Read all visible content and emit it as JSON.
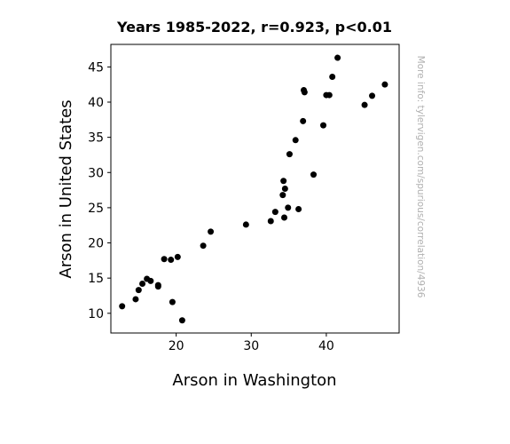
{
  "chart_data": {
    "type": "scatter",
    "title": "Years 1985-2022, r=0.923, p<0.01",
    "xlabel": "Arson in Washington",
    "ylabel": "Arson in United States",
    "side_note": "More info: tylervigen.com/spurious/correlation/4936",
    "xlim": [
      11.3,
      49.7
    ],
    "ylim": [
      7.2,
      48.2
    ],
    "xticks": [
      20,
      30,
      40
    ],
    "yticks": [
      10,
      15,
      20,
      25,
      30,
      35,
      40,
      45
    ],
    "grid": false,
    "marker_color": "#000000",
    "points": [
      {
        "x": 12.8,
        "y": 11.0
      },
      {
        "x": 14.6,
        "y": 12.0
      },
      {
        "x": 15.0,
        "y": 13.3
      },
      {
        "x": 15.5,
        "y": 14.2
      },
      {
        "x": 16.1,
        "y": 14.9
      },
      {
        "x": 16.6,
        "y": 14.6
      },
      {
        "x": 17.6,
        "y": 14.0
      },
      {
        "x": 17.6,
        "y": 13.8
      },
      {
        "x": 18.4,
        "y": 17.7
      },
      {
        "x": 19.3,
        "y": 17.6
      },
      {
        "x": 19.5,
        "y": 11.6
      },
      {
        "x": 20.2,
        "y": 18.0
      },
      {
        "x": 20.8,
        "y": 9.0
      },
      {
        "x": 23.6,
        "y": 19.6
      },
      {
        "x": 24.6,
        "y": 21.6
      },
      {
        "x": 29.3,
        "y": 22.6
      },
      {
        "x": 32.6,
        "y": 23.1
      },
      {
        "x": 33.2,
        "y": 24.4
      },
      {
        "x": 34.2,
        "y": 26.8
      },
      {
        "x": 34.3,
        "y": 28.8
      },
      {
        "x": 34.4,
        "y": 23.6
      },
      {
        "x": 34.5,
        "y": 27.7
      },
      {
        "x": 34.9,
        "y": 25.0
      },
      {
        "x": 35.1,
        "y": 32.6
      },
      {
        "x": 35.9,
        "y": 34.6
      },
      {
        "x": 36.3,
        "y": 24.8
      },
      {
        "x": 36.9,
        "y": 37.3
      },
      {
        "x": 37.0,
        "y": 41.7
      },
      {
        "x": 37.1,
        "y": 41.4
      },
      {
        "x": 38.3,
        "y": 29.7
      },
      {
        "x": 39.6,
        "y": 36.7
      },
      {
        "x": 40.0,
        "y": 41.0
      },
      {
        "x": 40.4,
        "y": 41.0
      },
      {
        "x": 40.8,
        "y": 43.6
      },
      {
        "x": 41.5,
        "y": 46.3
      },
      {
        "x": 45.1,
        "y": 39.6
      },
      {
        "x": 46.1,
        "y": 40.9
      },
      {
        "x": 47.8,
        "y": 42.5
      }
    ]
  }
}
